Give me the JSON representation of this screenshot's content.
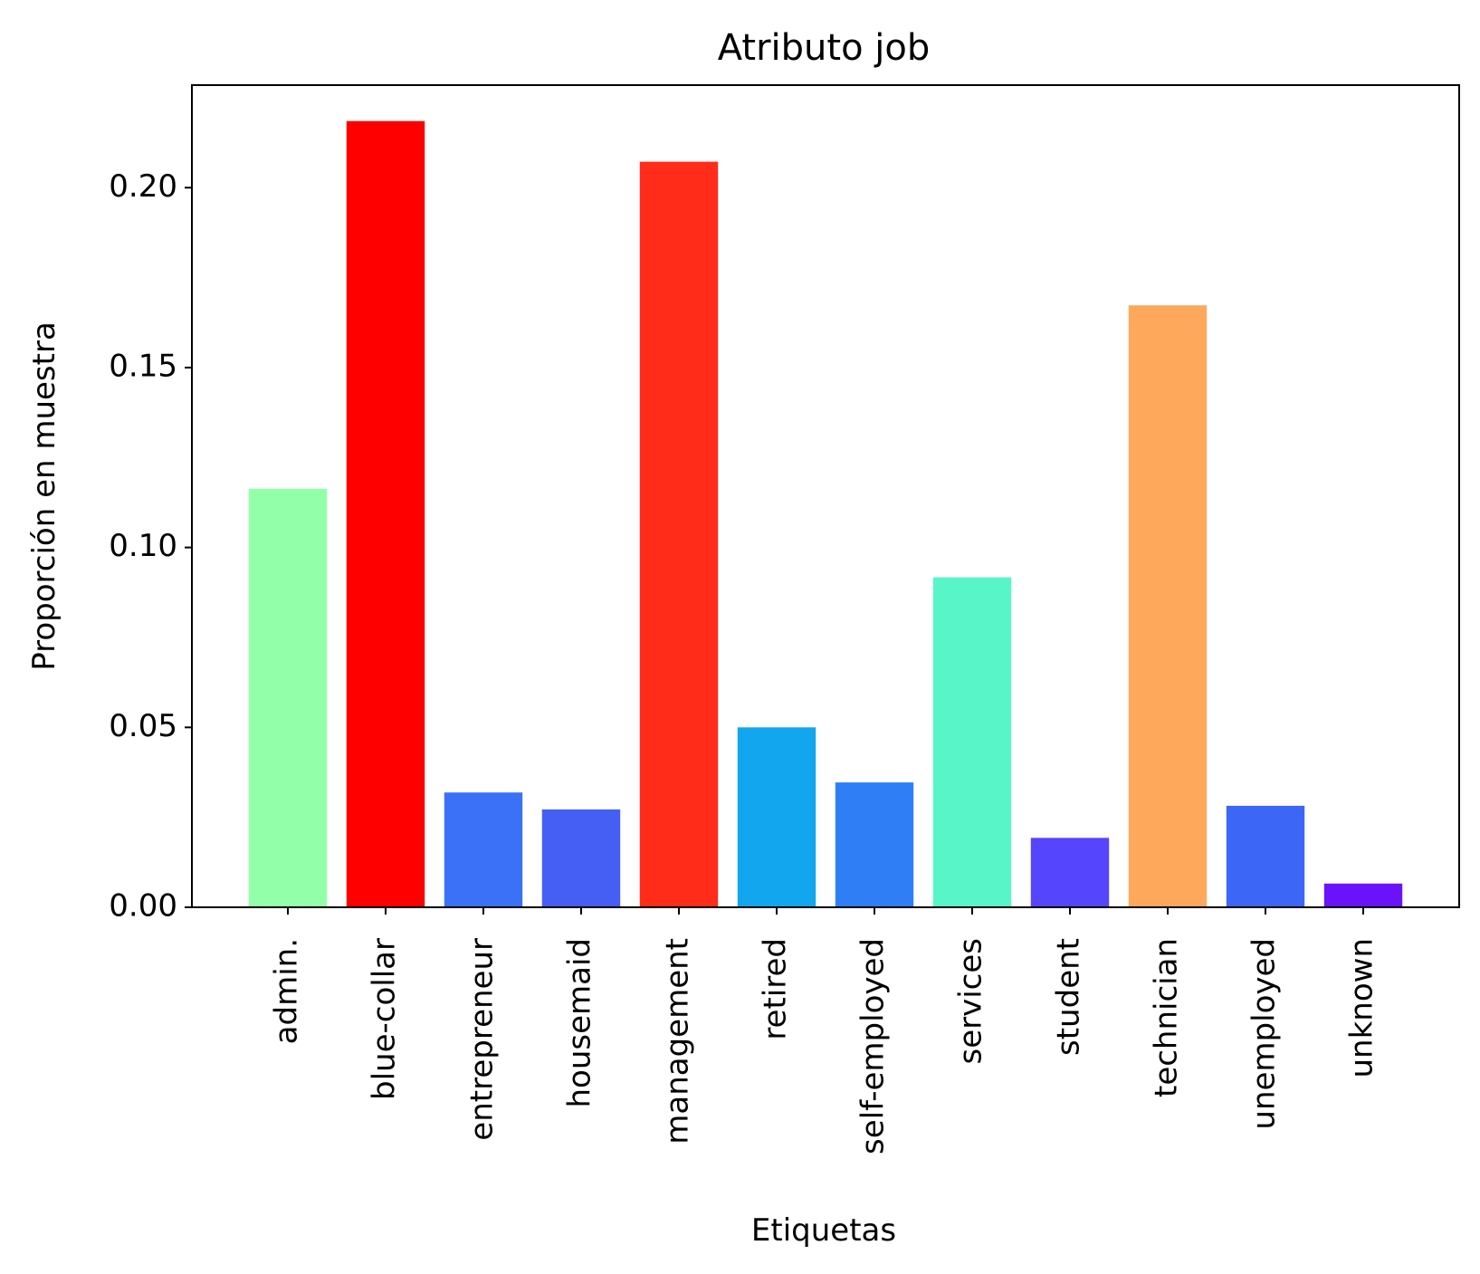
{
  "chart_data": {
    "type": "bar",
    "title": "Atributo job",
    "xlabel": "Etiquetas",
    "ylabel": "Proporción en muestra",
    "categories": [
      "admin.",
      "blue-collar",
      "entrepreneur",
      "housemaid",
      "management",
      "retired",
      "self-employed",
      "services",
      "student",
      "technician",
      "unemployed",
      "unknown"
    ],
    "values": [
      0.1163,
      0.2185,
      0.0319,
      0.0272,
      0.2072,
      0.05,
      0.0347,
      0.0917,
      0.0193,
      0.1673,
      0.0282,
      0.0066
    ],
    "colors": [
      "#92ffa9",
      "#ff0000",
      "#3a71f7",
      "#455ff5",
      "#ff2c19",
      "#12a6ee",
      "#2f7ef6",
      "#58f5c8",
      "#5545fd",
      "#fea85c",
      "#3c67f6",
      "#6a13fb"
    ],
    "ylim": [
      0,
      0.2285
    ],
    "yticks": [
      0.0,
      0.05,
      0.1,
      0.15,
      0.2
    ],
    "ytick_labels": [
      "0.00",
      "0.05",
      "0.10",
      "0.15",
      "0.20"
    ],
    "grid": false,
    "legend": "none"
  }
}
